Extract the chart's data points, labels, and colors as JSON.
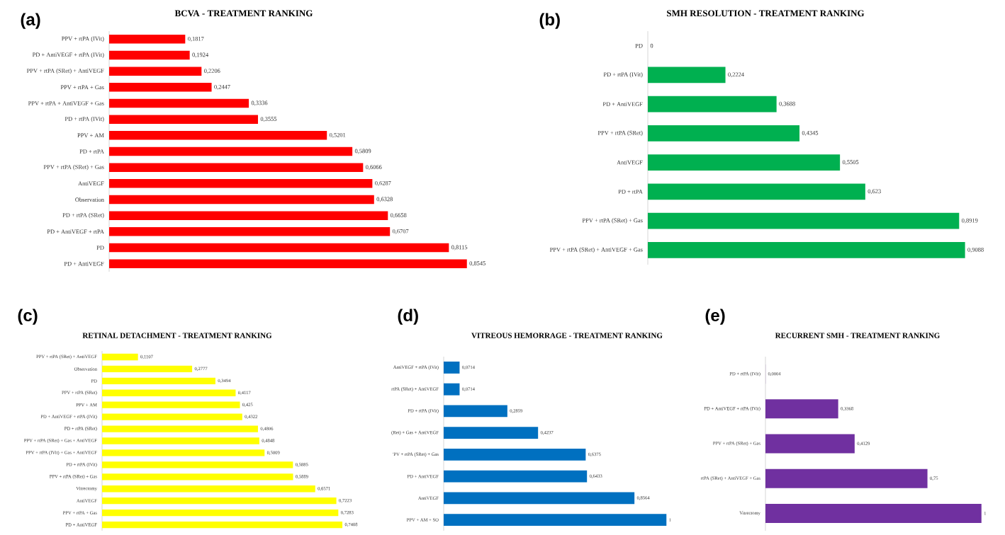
{
  "chart_data": [
    {
      "type": "bar",
      "orientation": "horizontal",
      "title": "BCVA - TREATMENT RANKING",
      "annotations": [
        "(a)"
      ],
      "color": "#ff0000",
      "categories": [
        "PPV + rtPA (IVit)",
        "PD + AntiVEGF + rtPA (IVit)",
        "PPV + rtPA (SRet) + AntiVEGF",
        "PPV + rtPA + Gas",
        "PPV + rtPA + AntiVEGF + Gas",
        "PD + rtPA (IVit)",
        "PPV + AM",
        "PD + rtPA",
        "PPV + rtPA (SRet) + Gas",
        "AntiVEGF",
        "Observation",
        "PD + rtPA (SRet)",
        "PD + AntiVEGF + rtPA",
        "PD",
        "PD + AntiVEGF"
      ],
      "values": [
        0.1817,
        0.1924,
        0.2206,
        0.2447,
        0.3336,
        0.3555,
        0.5201,
        0.5809,
        0.6066,
        0.6287,
        0.6328,
        0.6658,
        0.6707,
        0.8115,
        0.8545
      ],
      "value_labels": [
        "0,1817",
        "0,1924",
        "0,2206",
        "0,2447",
        "0,3336",
        "0,3555",
        "0,5201",
        "0,5809",
        "0,6066",
        "0,6287",
        "0,6328",
        "0,6658",
        "0,6707",
        "0,8115",
        "0,8545"
      ]
    },
    {
      "type": "bar",
      "orientation": "horizontal",
      "title": "SMH RESOLUTION - TREATMENT RANKING",
      "annotations": [
        "(b)"
      ],
      "color": "#00b050",
      "categories": [
        "PD",
        "PD + rtPA (IVit)",
        "PD + AntiVEGF",
        "PPV + rtPA (SRet)",
        "AntiVEGF",
        "PD + rtPA",
        "PPV + rtPA (SRet) + Gas",
        "PPV + rtPA (SRet) + AntiVEGF + Gas"
      ],
      "values": [
        0,
        0.2224,
        0.3688,
        0.4345,
        0.5505,
        0.623,
        0.8919,
        0.9088
      ],
      "value_labels": [
        "0",
        "0,2224",
        "0,3688",
        "0,4345",
        "0,5505",
        "0,623",
        "0,8919",
        "0,9088"
      ]
    },
    {
      "type": "bar",
      "orientation": "horizontal",
      "title": "RETINAL DETACHMENT - TREATMENT RANKING",
      "annotations": [
        "(c)"
      ],
      "color": "#ffff00",
      "categories": [
        "PPV + rtPA (SRet) + AntiVEGF",
        "Observation",
        "PD",
        "PPV + rtPA (SRet)",
        "PPV + AM",
        "PD + AntiVEGF + rtPA (IVit)",
        "PD + rtPA (SRet)",
        "PPV + rtPA (SRet) + Gas + AntiVEGF",
        "PPV + rtPA (IVit) + Gas + AntiVEGF",
        "PD + rtPA (IVit)",
        "PPV + rtPA (SRet) + Gas",
        "Vitrectomy",
        "AntiVEGF",
        "PPV + rtPA + Gas",
        "PD + AntiVEGF"
      ],
      "values": [
        0.1107,
        0.2777,
        0.3494,
        0.4117,
        0.425,
        0.4322,
        0.4806,
        0.4848,
        0.5009,
        0.5885,
        0.5889,
        0.6571,
        0.7223,
        0.7283,
        0.7408
      ],
      "value_labels": [
        "0,1107",
        "0,2777",
        "0,3494",
        "0,4117",
        "0,425",
        "0,4322",
        "0,4806",
        "0,4848",
        "0,5009",
        "0,5885",
        "0,5889",
        "0,6571",
        "0,7223",
        "0,7283",
        "0,7408"
      ]
    },
    {
      "type": "bar",
      "orientation": "horizontal",
      "title": "VITREOUS HEMORRAGE - TREATMENT RANKING",
      "annotations": [
        "(d)"
      ],
      "color": "#0070c0",
      "categories": [
        "AntiVEGF + rtPA (IVit)",
        "rtPA (SRet) + AntiVEGF",
        "PD + rtPA (IVit)",
        "(Ret) + Gas + AntiVEGF",
        "'PV + rtPA (SRet) + Gas",
        "PD + AntiVEGF",
        "AntiVEGF",
        "PPV + AM + SO"
      ],
      "values": [
        0.0714,
        0.0714,
        0.2859,
        0.4237,
        0.6375,
        0.6433,
        0.8564,
        1
      ],
      "value_labels": [
        "0,0714",
        "0,0714",
        "0,2859",
        "0,4237",
        "0,6375",
        "0,6433",
        "0,8564",
        "1"
      ]
    },
    {
      "type": "bar",
      "orientation": "horizontal",
      "title": "RECURRENT SMH - TREATMENT RANKING",
      "annotations": [
        "(e)"
      ],
      "color": "#7030a0",
      "categories": [
        "PD + rtPA (IVit)",
        "PD + AntiVEGF + rtPA (IVit)",
        "PPV + rtPA (SRet) + Gas",
        "rtPA (SRet) + AntiVEGF + Gas",
        "Vitrectomy"
      ],
      "values": [
        0.0004,
        0.3368,
        0.4129,
        0.75,
        1
      ],
      "value_labels": [
        "0,0004",
        "0,3368",
        "0,4129",
        "0,75",
        "1"
      ]
    }
  ]
}
